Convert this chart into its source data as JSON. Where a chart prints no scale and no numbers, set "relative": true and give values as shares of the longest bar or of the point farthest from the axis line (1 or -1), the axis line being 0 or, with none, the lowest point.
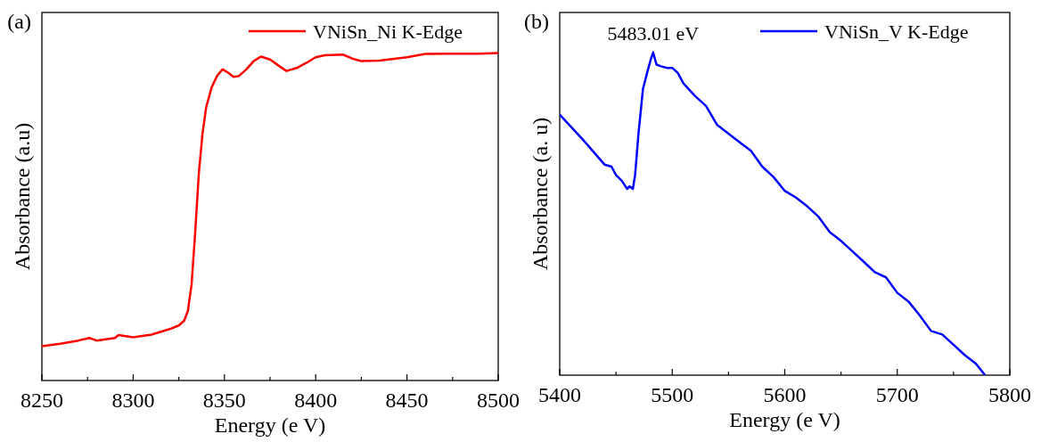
{
  "chart_data": [
    {
      "type": "line",
      "title": "(a)",
      "xlabel": "Energy (e V)",
      "ylabel": "Absorbance (a.u)",
      "relative": true,
      "legend": "top right",
      "xlim": [
        8250,
        8500
      ],
      "xticks": [
        8250,
        {
          "value": 8275,
          "label": null
        },
        8300,
        {
          "value": 8325,
          "label": null
        },
        8350,
        {
          "value": 8375,
          "label": null
        },
        8400,
        {
          "value": 8425,
          "label": null
        },
        8450,
        {
          "value": 8475,
          "label": null
        },
        8500
      ],
      "series": [
        {
          "name": "VNiSn_Ni K-Edge",
          "color": "#ff0000",
          "x": [
            8250,
            8260,
            8270,
            8276,
            8280,
            8290,
            8292,
            8300,
            8310,
            8320,
            8325,
            8328,
            8330,
            8332,
            8334,
            8336,
            8338,
            8340,
            8343,
            8346,
            8349,
            8352,
            8355,
            8358,
            8362,
            8366,
            8370,
            8375,
            8380,
            8384,
            8390,
            8395,
            8400,
            8405,
            8415,
            8420,
            8425,
            8435,
            8450,
            8460,
            8475,
            8490,
            8500
          ],
          "values": [
            0.105,
            0.112,
            0.122,
            0.13,
            0.122,
            0.13,
            0.139,
            0.132,
            0.14,
            0.157,
            0.168,
            0.183,
            0.213,
            0.293,
            0.453,
            0.634,
            0.754,
            0.834,
            0.895,
            0.93,
            0.95,
            0.94,
            0.927,
            0.93,
            0.95,
            0.975,
            0.989,
            0.98,
            0.96,
            0.945,
            0.955,
            0.97,
            0.987,
            0.993,
            0.995,
            0.983,
            0.975,
            0.977,
            0.987,
            0.997,
            0.998,
            0.998,
            1.0
          ]
        }
      ]
    },
    {
      "type": "line",
      "title": "(b)",
      "xlabel": "Energy (e V)",
      "ylabel": "Absorbance (a. u)",
      "relative": true,
      "legend": "top right",
      "xlim": [
        5400,
        5800
      ],
      "xticks": [
        5400,
        {
          "value": 5450,
          "label": null
        },
        5500,
        {
          "value": 5550,
          "label": null
        },
        5600,
        {
          "value": 5650,
          "label": null
        },
        5700,
        {
          "value": 5750,
          "label": null
        },
        5800
      ],
      "annotations": [
        {
          "text": "5483.01 eV",
          "x": 5483.01,
          "y": 1
        }
      ],
      "series": [
        {
          "name": "VNiSn_V K-Edge",
          "color": "#0000ff",
          "x": [
            5400,
            5420,
            5440,
            5446,
            5450,
            5455,
            5460,
            5462,
            5465,
            5467,
            5470,
            5474,
            5478,
            5481,
            5483,
            5486,
            5490,
            5495,
            5500,
            5505,
            5510,
            5520,
            5530,
            5540,
            5550,
            5560,
            5570,
            5580,
            5590,
            5600,
            5610,
            5620,
            5630,
            5640,
            5650,
            5660,
            5670,
            5680,
            5690,
            5700,
            5710,
            5720,
            5730,
            5740,
            5750,
            5760,
            5770,
            5778
          ],
          "values": [
            0.807,
            0.732,
            0.652,
            0.646,
            0.62,
            0.603,
            0.577,
            0.585,
            0.577,
            0.62,
            0.748,
            0.887,
            0.941,
            0.979,
            1.0,
            0.962,
            0.957,
            0.952,
            0.952,
            0.936,
            0.904,
            0.866,
            0.834,
            0.775,
            0.748,
            0.721,
            0.695,
            0.646,
            0.614,
            0.571,
            0.55,
            0.523,
            0.491,
            0.443,
            0.416,
            0.384,
            0.352,
            0.319,
            0.303,
            0.255,
            0.228,
            0.185,
            0.137,
            0.126,
            0.094,
            0.062,
            0.035,
            0.0
          ]
        }
      ]
    }
  ]
}
